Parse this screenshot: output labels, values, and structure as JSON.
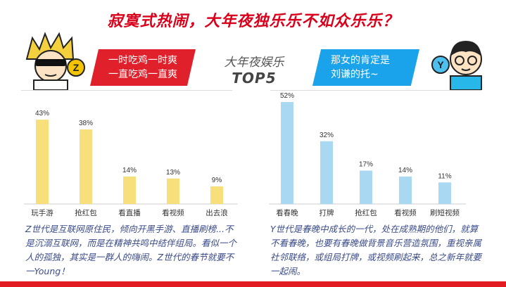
{
  "title": "寂寞式热闹，大年夜独乐乐不如众乐乐？",
  "center": {
    "line1": "大年夜娱乐",
    "line2": "TOP5"
  },
  "left_bubble": {
    "line1": "一时吃鸡一时爽",
    "line2": "一直吃鸡一直爽"
  },
  "right_bubble": {
    "line1": "那女的肯定是",
    "line2": "刘谦的托~"
  },
  "left_badge": "Z",
  "right_badge": "Y",
  "colors": {
    "left_bar": "#f7df7c",
    "right_bar": "#a9d8f2",
    "accent_red": "#e0212b",
    "accent_blue": "#1aa3ea"
  },
  "chart_data": [
    {
      "type": "bar",
      "categories": [
        "玩手游",
        "抢红包",
        "看直播",
        "看视频",
        "出去浪"
      ],
      "values": [
        43,
        38,
        14,
        13,
        9
      ],
      "value_labels": [
        "43%",
        "38%",
        "14%",
        "13%",
        "9%"
      ],
      "title": "",
      "xlabel": "",
      "ylabel": "",
      "ylim": [
        0,
        52
      ]
    },
    {
      "type": "bar",
      "categories": [
        "看春晚",
        "打牌",
        "抢红包",
        "看视频",
        "刷短视频"
      ],
      "values": [
        52,
        32,
        17,
        14,
        11
      ],
      "value_labels": [
        "52%",
        "32%",
        "17%",
        "14%",
        "11%"
      ],
      "title": "",
      "xlabel": "",
      "ylabel": "",
      "ylim": [
        0,
        52
      ]
    }
  ],
  "left_desc": "Z世代是互联网原住民，倾向开黑手游、直播刷榜...不是沉溺互联网，而是在精神共鸣中结伴组局。看似一个人的孤独，其实是一群人的嗨闹。Z世代的春节就要不一Young！",
  "right_desc": "Y世代是春晚中成长的一代，处在成熟期的他们，就算不看春晚，也要有春晚做背景音乐营造氛围，重视亲属社邻联络，或组局打牌，或视频刷起来，总之新年就要一起闹。"
}
